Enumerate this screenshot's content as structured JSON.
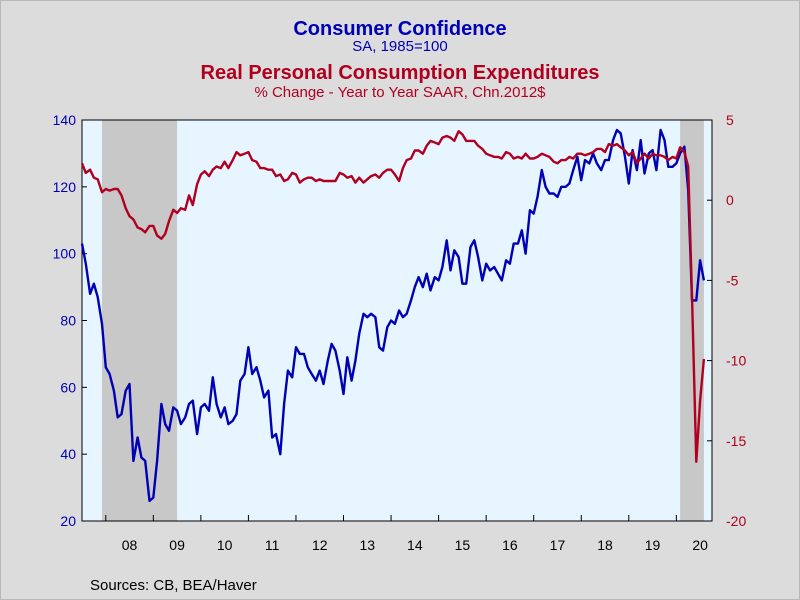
{
  "header": {
    "title1": "Consumer Confidence",
    "subtitle1": "SA, 1985=100",
    "title2": "Real Personal Consumption Expenditures",
    "subtitle2": "% Change - Year to Year    SAAR, Chn.2012$"
  },
  "footer": {
    "sources": "Sources:  CB, BEA/Haver"
  },
  "colors": {
    "confidence": "#0000b4",
    "pce": "#b00020",
    "plot_bg": "#e6f5ff",
    "recession": "#c8c8c8",
    "page_bg": "#dcdcdc"
  },
  "chart_data": {
    "type": "line",
    "x_ticks": [
      "08",
      "09",
      "10",
      "11",
      "12",
      "13",
      "14",
      "15",
      "16",
      "17",
      "18",
      "19",
      "20"
    ],
    "left_axis": {
      "ticks": [
        20,
        40,
        60,
        80,
        100,
        120,
        140
      ],
      "ylim": [
        20,
        140
      ]
    },
    "right_axis": {
      "ticks": [
        5,
        0,
        -5,
        -10,
        -15,
        -20
      ],
      "ylim": [
        -20,
        5
      ]
    },
    "xlim": [
      2007.5,
      2020.75
    ],
    "recessions": [
      [
        2007.92,
        2009.5
      ],
      [
        2020.08,
        2020.58
      ]
    ],
    "grid": false,
    "series": [
      {
        "name": "Consumer Confidence",
        "axis": "left",
        "x": [
          2007.5,
          2007.58,
          2007.67,
          2007.75,
          2007.83,
          2007.92,
          2008.0,
          2008.08,
          2008.17,
          2008.25,
          2008.33,
          2008.42,
          2008.5,
          2008.58,
          2008.67,
          2008.75,
          2008.83,
          2008.92,
          2009.0,
          2009.08,
          2009.17,
          2009.25,
          2009.33,
          2009.42,
          2009.5,
          2009.58,
          2009.67,
          2009.75,
          2009.83,
          2009.92,
          2010.0,
          2010.08,
          2010.17,
          2010.25,
          2010.33,
          2010.42,
          2010.5,
          2010.58,
          2010.67,
          2010.75,
          2010.83,
          2010.92,
          2011.0,
          2011.08,
          2011.17,
          2011.25,
          2011.33,
          2011.42,
          2011.5,
          2011.58,
          2011.67,
          2011.75,
          2011.83,
          2011.92,
          2012.0,
          2012.08,
          2012.17,
          2012.25,
          2012.33,
          2012.42,
          2012.5,
          2012.58,
          2012.67,
          2012.75,
          2012.83,
          2012.92,
          2013.0,
          2013.08,
          2013.17,
          2013.25,
          2013.33,
          2013.42,
          2013.5,
          2013.58,
          2013.67,
          2013.75,
          2013.83,
          2013.92,
          2014.0,
          2014.08,
          2014.17,
          2014.25,
          2014.33,
          2014.42,
          2014.5,
          2014.58,
          2014.67,
          2014.75,
          2014.83,
          2014.92,
          2015.0,
          2015.08,
          2015.17,
          2015.25,
          2015.33,
          2015.42,
          2015.5,
          2015.58,
          2015.67,
          2015.75,
          2015.83,
          2015.92,
          2016.0,
          2016.08,
          2016.17,
          2016.25,
          2016.33,
          2016.42,
          2016.5,
          2016.58,
          2016.67,
          2016.75,
          2016.83,
          2016.92,
          2017.0,
          2017.08,
          2017.17,
          2017.25,
          2017.33,
          2017.42,
          2017.5,
          2017.58,
          2017.67,
          2017.75,
          2017.83,
          2017.92,
          2018.0,
          2018.08,
          2018.17,
          2018.25,
          2018.33,
          2018.42,
          2018.5,
          2018.58,
          2018.67,
          2018.75,
          2018.83,
          2018.92,
          2019.0,
          2019.08,
          2019.17,
          2019.25,
          2019.33,
          2019.42,
          2019.5,
          2019.58,
          2019.67,
          2019.75,
          2019.83,
          2019.92,
          2020.0,
          2020.08,
          2020.17,
          2020.25,
          2020.33,
          2020.42,
          2020.5,
          2020.58
        ],
        "values": [
          103,
          97,
          88,
          91,
          87,
          79,
          66,
          64,
          59,
          51,
          52,
          59,
          61,
          38,
          45,
          39,
          38,
          26,
          27,
          38,
          55,
          49,
          47,
          54,
          53,
          49,
          51,
          55,
          56,
          46,
          54,
          55,
          53,
          63,
          55,
          51,
          54,
          49,
          50,
          52,
          62,
          64,
          72,
          64,
          66,
          62,
          57,
          59,
          45,
          46,
          40,
          55,
          65,
          63,
          72,
          70,
          70,
          66,
          64,
          62,
          65,
          61,
          68,
          73,
          71,
          65,
          58,
          69,
          62,
          68,
          76,
          82,
          81,
          82,
          81,
          72,
          71,
          78,
          80,
          79,
          83,
          81,
          82,
          86,
          90,
          93,
          90,
          94,
          89,
          93,
          92,
          96,
          104,
          95,
          101,
          99,
          91,
          91,
          102,
          104,
          99,
          92,
          97,
          95,
          96,
          94,
          92,
          98,
          97,
          103,
          103,
          107,
          100,
          113,
          112,
          117,
          125,
          120,
          118,
          118,
          117,
          120,
          120,
          121,
          125,
          129,
          122,
          128,
          127,
          130,
          127,
          125,
          128,
          128,
          134,
          137,
          136,
          129,
          121,
          131,
          125,
          134,
          124,
          130,
          131,
          125,
          137,
          134,
          126,
          126,
          127,
          130,
          132,
          119,
          86,
          86,
          98,
          92
        ],
        "color": "#0000b4"
      },
      {
        "name": "Real Personal Consumption Expenditures",
        "axis": "right",
        "x": [
          2007.5,
          2007.58,
          2007.67,
          2007.75,
          2007.83,
          2007.92,
          2008.0,
          2008.08,
          2008.17,
          2008.25,
          2008.33,
          2008.42,
          2008.5,
          2008.58,
          2008.67,
          2008.75,
          2008.83,
          2008.92,
          2009.0,
          2009.08,
          2009.17,
          2009.25,
          2009.33,
          2009.42,
          2009.5,
          2009.58,
          2009.67,
          2009.75,
          2009.83,
          2009.92,
          2010.0,
          2010.08,
          2010.17,
          2010.25,
          2010.33,
          2010.42,
          2010.5,
          2010.58,
          2010.67,
          2010.75,
          2010.83,
          2010.92,
          2011.0,
          2011.08,
          2011.17,
          2011.25,
          2011.33,
          2011.42,
          2011.5,
          2011.58,
          2011.67,
          2011.75,
          2011.83,
          2011.92,
          2012.0,
          2012.08,
          2012.17,
          2012.25,
          2012.33,
          2012.42,
          2012.5,
          2012.58,
          2012.67,
          2012.75,
          2012.83,
          2012.92,
          2013.0,
          2013.08,
          2013.17,
          2013.25,
          2013.33,
          2013.42,
          2013.5,
          2013.58,
          2013.67,
          2013.75,
          2013.83,
          2013.92,
          2014.0,
          2014.08,
          2014.17,
          2014.25,
          2014.33,
          2014.42,
          2014.5,
          2014.58,
          2014.67,
          2014.75,
          2014.83,
          2014.92,
          2015.0,
          2015.08,
          2015.17,
          2015.25,
          2015.33,
          2015.42,
          2015.5,
          2015.58,
          2015.67,
          2015.75,
          2015.83,
          2015.92,
          2016.0,
          2016.08,
          2016.17,
          2016.25,
          2016.33,
          2016.42,
          2016.5,
          2016.58,
          2016.67,
          2016.75,
          2016.83,
          2016.92,
          2017.0,
          2017.08,
          2017.17,
          2017.25,
          2017.33,
          2017.42,
          2017.5,
          2017.58,
          2017.67,
          2017.75,
          2017.83,
          2017.92,
          2018.0,
          2018.08,
          2018.17,
          2018.25,
          2018.33,
          2018.42,
          2018.5,
          2018.58,
          2018.67,
          2018.75,
          2018.83,
          2018.92,
          2019.0,
          2019.08,
          2019.17,
          2019.25,
          2019.33,
          2019.42,
          2019.5,
          2019.58,
          2019.67,
          2019.75,
          2019.83,
          2019.92,
          2020.0,
          2020.08,
          2020.17,
          2020.25,
          2020.33,
          2020.42,
          2020.5,
          2020.58
        ],
        "values": [
          2.3,
          1.7,
          1.9,
          1.4,
          1.3,
          0.5,
          0.7,
          0.6,
          0.7,
          0.7,
          0.3,
          -0.5,
          -1.0,
          -1.2,
          -1.7,
          -1.8,
          -2.0,
          -1.6,
          -1.6,
          -2.2,
          -2.4,
          -2.1,
          -1.3,
          -0.6,
          -0.8,
          -0.5,
          -0.6,
          0.3,
          -0.3,
          1.0,
          1.6,
          1.8,
          1.5,
          1.9,
          2.1,
          2.0,
          2.4,
          2.0,
          2.5,
          3.0,
          2.8,
          2.9,
          3.0,
          2.5,
          2.4,
          2.0,
          2.0,
          1.9,
          1.9,
          1.5,
          1.6,
          1.2,
          1.3,
          1.7,
          1.6,
          1.1,
          1.3,
          1.4,
          1.4,
          1.2,
          1.3,
          1.2,
          1.2,
          1.2,
          1.2,
          1.7,
          1.6,
          1.4,
          1.5,
          1.1,
          1.4,
          1.1,
          1.3,
          1.5,
          1.6,
          1.4,
          1.7,
          1.9,
          1.9,
          1.6,
          1.2,
          2.0,
          2.5,
          2.6,
          3.1,
          3.1,
          2.9,
          3.4,
          3.7,
          3.6,
          3.5,
          3.9,
          4.0,
          3.9,
          3.7,
          4.3,
          4.1,
          3.7,
          3.7,
          3.7,
          3.4,
          3.2,
          2.9,
          2.8,
          2.7,
          2.7,
          2.6,
          3.0,
          2.9,
          2.6,
          2.7,
          2.6,
          2.9,
          2.6,
          2.6,
          2.7,
          2.9,
          2.8,
          2.7,
          2.4,
          2.3,
          2.5,
          2.5,
          2.7,
          2.6,
          2.9,
          2.9,
          2.8,
          2.9,
          3.0,
          3.2,
          3.2,
          3.0,
          3.5,
          3.4,
          3.5,
          3.3,
          3.1,
          2.8,
          3.0,
          2.3,
          2.6,
          2.9,
          2.6,
          2.9,
          2.8,
          2.8,
          2.7,
          2.5,
          2.7,
          2.6,
          3.3,
          3.0,
          2.1,
          -6.0,
          -16.3,
          -12.5,
          -9.9
        ]
      }
    ]
  }
}
